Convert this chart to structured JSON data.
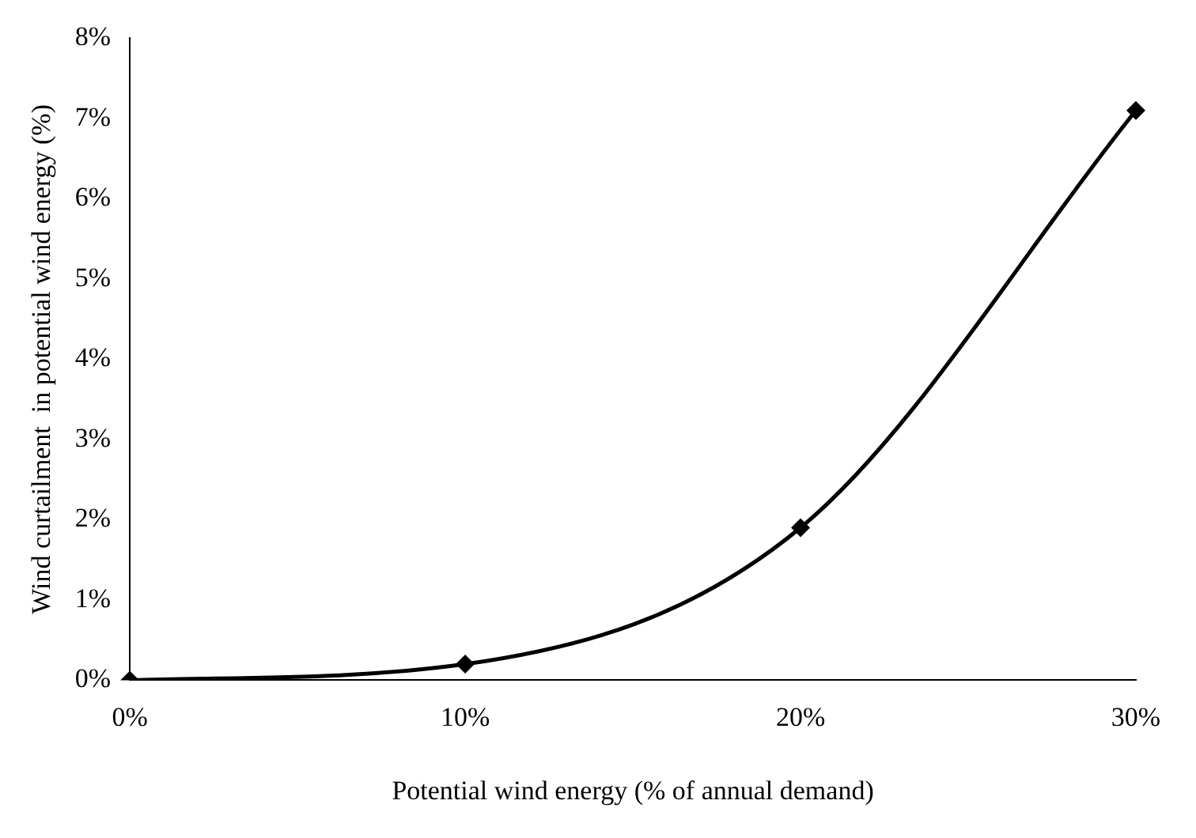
{
  "chart_data": {
    "type": "line",
    "xlabel": "Potential wind energy (% of annual demand)",
    "ylabel": "Wind curtailment  in potential wind energy (%)",
    "categories": [
      "0%",
      "10%",
      "20%",
      "30%"
    ],
    "series": [
      {
        "color": "#000000",
        "values": [
          0,
          0.2,
          1.9,
          7.1
        ]
      }
    ],
    "ylim": [
      0,
      8
    ],
    "yticks": [
      {
        "value": 0,
        "label": "0%"
      },
      {
        "value": 1,
        "label": "1%"
      },
      {
        "value": 2,
        "label": "2%"
      },
      {
        "value": 3,
        "label": "3%"
      },
      {
        "value": 4,
        "label": "4%"
      },
      {
        "value": 5,
        "label": "5%"
      },
      {
        "value": 6,
        "label": "6%"
      },
      {
        "value": 7,
        "label": "7%"
      },
      {
        "value": 8,
        "label": "8%"
      }
    ],
    "grid": false,
    "legend": false,
    "marker": "diamond",
    "line_style": "solid"
  }
}
